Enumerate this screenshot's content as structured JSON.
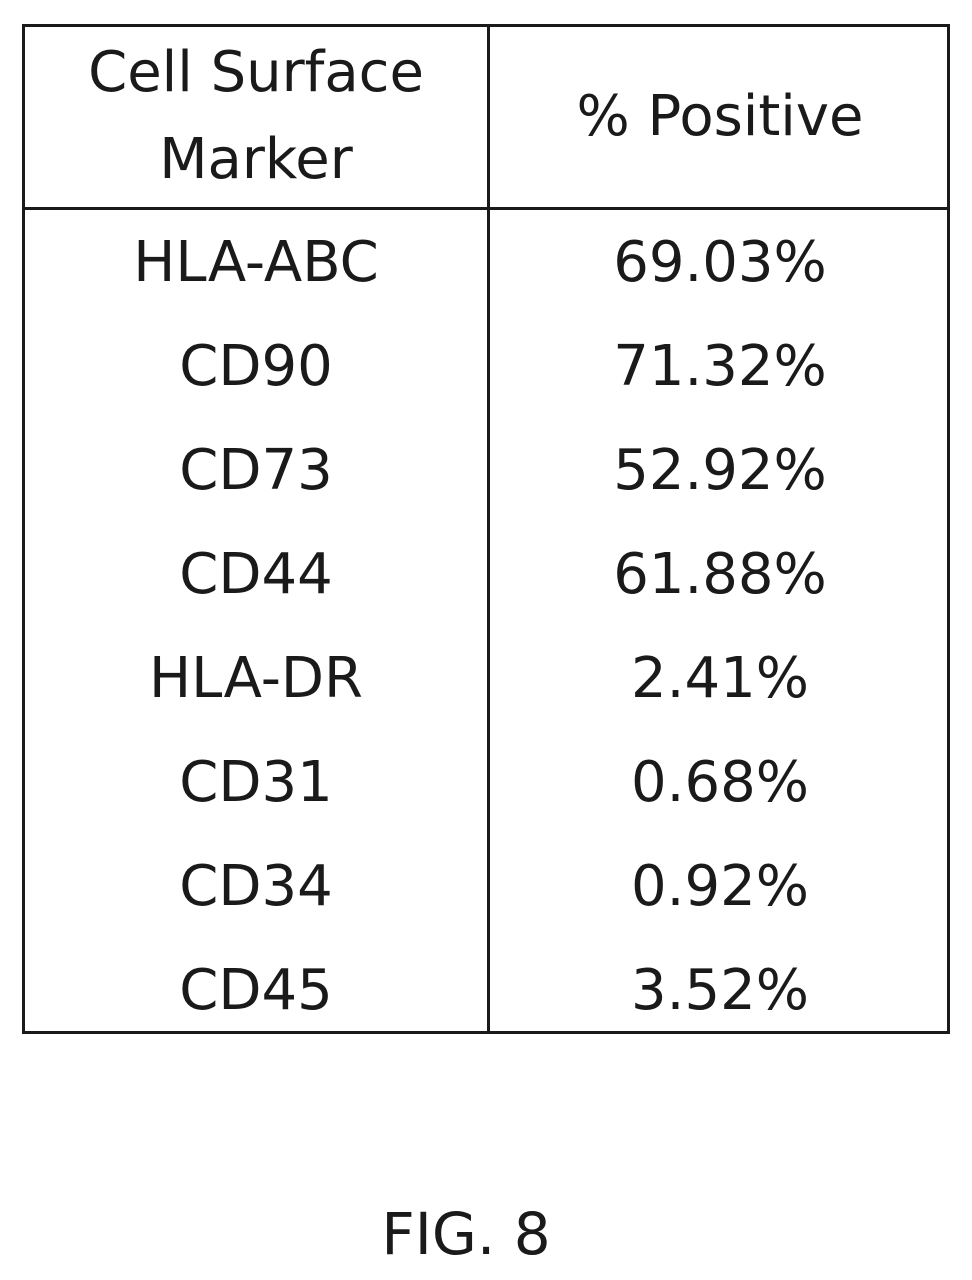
{
  "table": {
    "header": {
      "col1_line1": "Cell Surface",
      "col1_line2": "Marker",
      "col2": "% Positive"
    },
    "rows": [
      {
        "marker": "HLA-ABC",
        "percent": "69.03%"
      },
      {
        "marker": "CD90",
        "percent": "71.32%"
      },
      {
        "marker": "CD73",
        "percent": "52.92%"
      },
      {
        "marker": "CD44",
        "percent": "61.88%"
      },
      {
        "marker": "HLA-DR",
        "percent": "2.41%"
      },
      {
        "marker": "CD31",
        "percent": "0.68%"
      },
      {
        "marker": "CD34",
        "percent": "0.92%"
      },
      {
        "marker": "CD45",
        "percent": "3.52%"
      }
    ]
  },
  "caption": "FIG. 8"
}
